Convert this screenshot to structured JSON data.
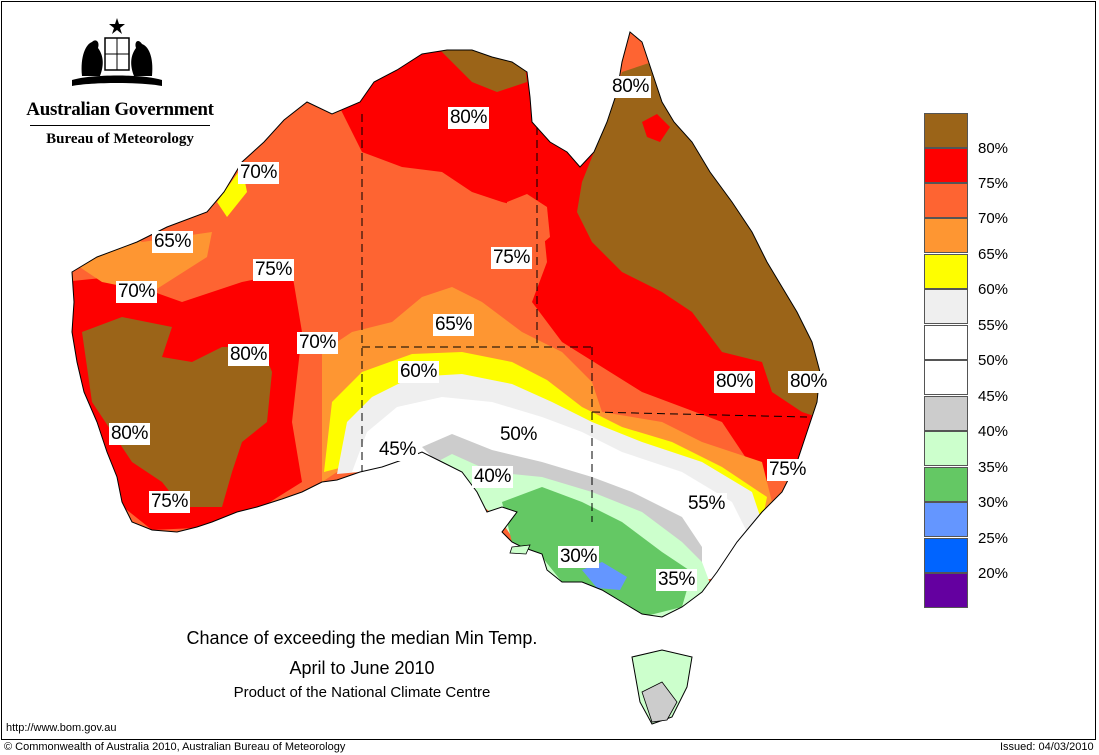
{
  "header": {
    "gov_title": "Australian Government",
    "gov_subtitle": "Bureau of Meteorology",
    "crest_icon": "coat-of-arms-icon"
  },
  "title": {
    "line1": "Chance of exceeding the median Min Temp.",
    "line2": "April to June 2010",
    "line3": "Product of the National Climate Centre"
  },
  "legend": {
    "items": [
      {
        "label": "80%",
        "color": "#9b6418"
      },
      {
        "label": "75%",
        "color": "#fe0000"
      },
      {
        "label": "70%",
        "color": "#fe6432"
      },
      {
        "label": "65%",
        "color": "#fe9632"
      },
      {
        "label": "60%",
        "color": "#fefe00"
      },
      {
        "label": "55%",
        "color": "#efefef"
      },
      {
        "label": "50%",
        "color": "#ffffff"
      },
      {
        "label": "45%",
        "color": "#ffffff"
      },
      {
        "label": "40%",
        "color": "#cccccc"
      },
      {
        "label": "35%",
        "color": "#ccffcc"
      },
      {
        "label": "30%",
        "color": "#64c864"
      },
      {
        "label": "25%",
        "color": "#6496ff"
      },
      {
        "label": "20%",
        "color": "#0064ff"
      }
    ],
    "last_color": "#6400a0"
  },
  "map_labels": [
    {
      "text": "80%"
    },
    {
      "text": "80%"
    },
    {
      "text": "70%"
    },
    {
      "text": "65%"
    },
    {
      "text": "75%"
    },
    {
      "text": "70%"
    },
    {
      "text": "75%"
    },
    {
      "text": "65%"
    },
    {
      "text": "70%"
    },
    {
      "text": "80%"
    },
    {
      "text": "60%"
    },
    {
      "text": "80%"
    },
    {
      "text": "80%"
    },
    {
      "text": "80%"
    },
    {
      "text": "50%"
    },
    {
      "text": "45%"
    },
    {
      "text": "75%"
    },
    {
      "text": "40%"
    },
    {
      "text": "55%"
    },
    {
      "text": "75%"
    },
    {
      "text": "30%"
    },
    {
      "text": "35%"
    }
  ],
  "footer": {
    "url": "http://www.bom.gov.au",
    "copyright": "© Commonwealth of Australia 2010, Australian Bureau of Meteorology",
    "issued": "Issued: 04/03/2010"
  }
}
